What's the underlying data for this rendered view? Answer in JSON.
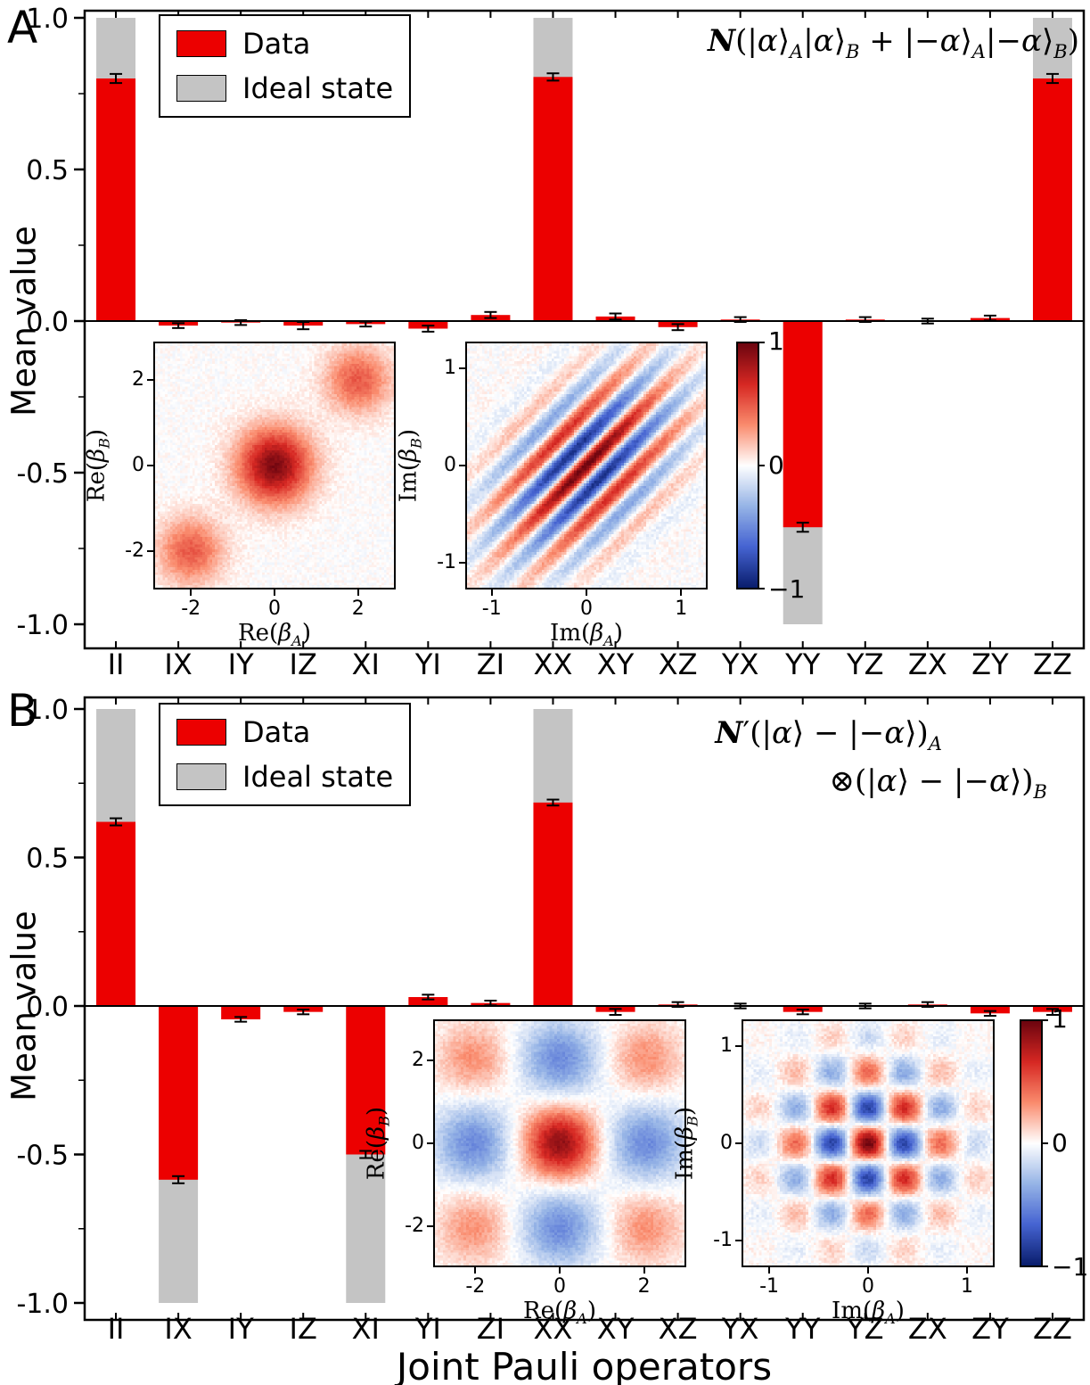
{
  "figure": {
    "panels": [
      {
        "letter": "A"
      },
      {
        "letter": "B"
      }
    ],
    "xlabel": "Joint Pauli operators",
    "ylabel": "Mean value",
    "legend": {
      "data": "Data",
      "ideal": "Ideal state"
    },
    "colors": {
      "data": "#ec0000",
      "ideal": "#c4c4c4",
      "axis": "#000000"
    }
  },
  "chart_data": [
    {
      "id": "panel_a_pauli_bars",
      "type": "bar",
      "panel": "A",
      "state_label": "𝒩(|α⟩_[A]|α⟩_[B] + |−α⟩_[A]|−α⟩_[B])",
      "categories": [
        "II",
        "IX",
        "IY",
        "IZ",
        "XI",
        "YI",
        "ZI",
        "XX",
        "XY",
        "XZ",
        "YX",
        "YY",
        "YZ",
        "ZX",
        "ZY",
        "ZZ"
      ],
      "series": [
        {
          "name": "Data",
          "color": "#ec0000",
          "values": [
            0.8,
            -0.015,
            -0.005,
            -0.015,
            -0.01,
            -0.025,
            0.02,
            0.805,
            0.015,
            -0.02,
            0.005,
            -0.68,
            0.005,
            0.0,
            0.01,
            0.8
          ]
        },
        {
          "name": "Ideal state",
          "color": "#c4c4c4",
          "values": [
            1,
            0,
            0,
            0,
            0,
            0,
            0,
            1,
            0,
            0,
            0,
            -1,
            0,
            0,
            0,
            1
          ]
        }
      ],
      "errors": [
        0.015,
        0.008,
        0.008,
        0.012,
        0.008,
        0.01,
        0.01,
        0.012,
        0.01,
        0.01,
        0.008,
        0.015,
        0.008,
        0.008,
        0.008,
        0.015
      ],
      "xlabel": "Joint Pauli operators",
      "ylabel": "Mean value",
      "ylim": [
        -1.05,
        1.05
      ],
      "yticks": [
        1.0,
        0.5,
        0.0,
        -0.5,
        -1.0
      ],
      "legend_position": "upper left",
      "legend": [
        "Data",
        "Ideal state"
      ]
    },
    {
      "id": "panel_a_inset_re",
      "type": "heatmap",
      "xlabel": "Re(β_[A])",
      "ylabel": "Re(β_[B])",
      "xticks": [
        -2,
        0,
        2
      ],
      "yticks": [
        -2,
        0,
        2
      ],
      "range": [
        -2.9,
        2.9
      ],
      "zlim": [
        -1,
        1
      ],
      "noise": 0.05,
      "features": {
        "blobs": [
          {
            "x": 0,
            "y": 0,
            "a": 0.95,
            "s": 0.62
          },
          {
            "x": 2.05,
            "y": 2.05,
            "a": 0.5,
            "s": 0.55
          },
          {
            "x": -2.05,
            "y": -2.05,
            "a": 0.5,
            "s": 0.55
          }
        ]
      },
      "description": "positive (red) Gaussian peaks on the diagonal at (-2,-2), (0,0) strongest, (2,2)"
    },
    {
      "id": "panel_a_inset_im",
      "type": "heatmap",
      "xlabel": "Im(β_[A])",
      "ylabel": "Im(β_[B])",
      "xticks": [
        -1,
        0,
        1
      ],
      "yticks": [
        1,
        0,
        -1
      ],
      "range": [
        -1.28,
        1.28
      ],
      "zlim": [
        -1,
        1
      ],
      "noise": 0.06,
      "features": {
        "fringes": {
          "a": 1.0,
          "period": 0.42,
          "su": 0.8,
          "sw": 0.45
        }
      },
      "description": "alternating red/blue interference fringes running along the +45° diagonal, red stripe through origin"
    },
    {
      "id": "panel_a_colorbar",
      "type": "colorbar",
      "ticks": [
        1,
        0,
        -1
      ],
      "zlim": [
        -1,
        1
      ]
    },
    {
      "id": "panel_b_pauli_bars",
      "type": "bar",
      "panel": "B",
      "state_label_lines": [
        "𝒩′(|α⟩ − |−α⟩)_[A]",
        "⊗(|α⟩ − |−α⟩)_[B]"
      ],
      "categories": [
        "II",
        "IX",
        "IY",
        "IZ",
        "XI",
        "YI",
        "ZI",
        "XX",
        "XY",
        "XZ",
        "YX",
        "YY",
        "YZ",
        "ZX",
        "ZY",
        "ZZ"
      ],
      "series": [
        {
          "name": "Data",
          "color": "#ec0000",
          "values": [
            0.62,
            -0.585,
            -0.045,
            -0.02,
            -0.5,
            0.03,
            0.01,
            0.685,
            -0.02,
            0.005,
            0.0,
            -0.02,
            0.0,
            0.005,
            -0.025,
            -0.02
          ]
        },
        {
          "name": "Ideal state",
          "color": "#c4c4c4",
          "values": [
            1,
            -1,
            0,
            0,
            -1,
            0,
            0,
            1,
            0,
            0,
            0,
            0,
            0,
            0,
            0,
            0
          ]
        }
      ],
      "errors": [
        0.012,
        0.012,
        0.008,
        0.008,
        0.012,
        0.008,
        0.008,
        0.01,
        0.01,
        0.008,
        0.008,
        0.008,
        0.008,
        0.008,
        0.008,
        0.01
      ],
      "xlabel": "Joint Pauli operators",
      "ylabel": "Mean value",
      "ylim": [
        -1.05,
        1.05
      ],
      "yticks": [
        1.0,
        0.5,
        0.0,
        -0.5,
        -1.0
      ],
      "legend_position": "upper left",
      "legend": [
        "Data",
        "Ideal state"
      ]
    },
    {
      "id": "panel_b_inset_re",
      "type": "heatmap",
      "xlabel": "Re(β_[A])",
      "ylabel": "Re(β_[B])",
      "xticks": [
        -2,
        0,
        2
      ],
      "yticks": [
        -2,
        0,
        2
      ],
      "range": [
        -3,
        3
      ],
      "zlim": [
        -1,
        1
      ],
      "noise": 0.05,
      "features": {
        "blobs": [
          {
            "x": 0,
            "y": 0,
            "a": 0.9,
            "s": 0.6
          },
          {
            "x": 2.1,
            "y": 0,
            "a": -0.5,
            "s": 0.65
          },
          {
            "x": -2.1,
            "y": 0,
            "a": -0.5,
            "s": 0.65
          },
          {
            "x": 0,
            "y": 2.1,
            "a": -0.5,
            "s": 0.65
          },
          {
            "x": 0,
            "y": -2.1,
            "a": -0.5,
            "s": 0.65
          },
          {
            "x": 2.1,
            "y": 2.1,
            "a": 0.32,
            "s": 0.6
          },
          {
            "x": -2.1,
            "y": 2.1,
            "a": 0.32,
            "s": 0.6
          },
          {
            "x": 2.1,
            "y": -2.1,
            "a": 0.32,
            "s": 0.6
          },
          {
            "x": -2.1,
            "y": -2.1,
            "a": 0.32,
            "s": 0.6
          }
        ]
      },
      "description": "red peak at origin, blue lobes at (±2,0),(0,±2), faint red lobes at the four corners (±2,±2)"
    },
    {
      "id": "panel_b_inset_im",
      "type": "heatmap",
      "xlabel": "Im(β_[A])",
      "ylabel": "Im(β_[B])",
      "xticks": [
        -1,
        0,
        1
      ],
      "yticks": [
        1,
        0,
        -1
      ],
      "range": [
        -1.28,
        1.28
      ],
      "zlim": [
        -1,
        1
      ],
      "noise": 0.06,
      "features": {
        "lattice": {
          "a": 1.0,
          "period": 0.78,
          "s": 0.6
        }
      },
      "description": "checkerboard lattice of red/blue blobs, strong red at origin, blue nearest neighbours, decaying envelope"
    },
    {
      "id": "panel_b_colorbar",
      "type": "colorbar",
      "ticks": [
        1,
        0,
        -1
      ],
      "zlim": [
        -1,
        1
      ]
    }
  ]
}
